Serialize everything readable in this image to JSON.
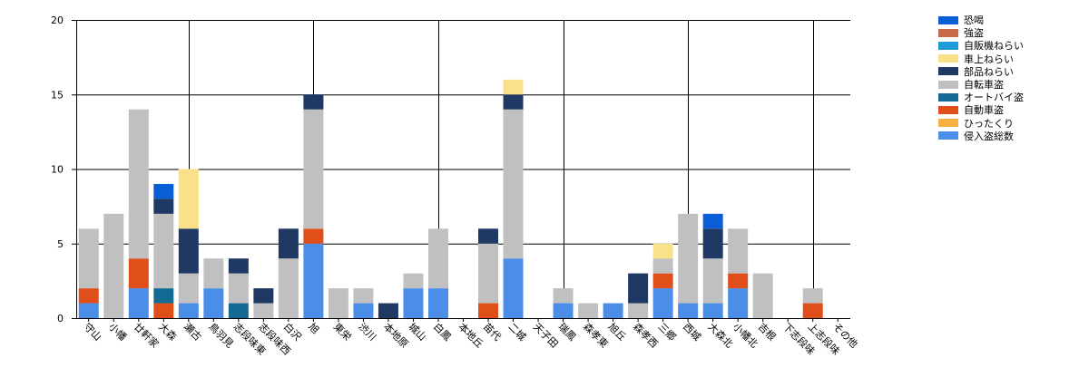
{
  "chart_data": {
    "type": "bar",
    "stacked": true,
    "title": "",
    "xlabel": "",
    "ylabel": "",
    "ylim": [
      0,
      20
    ],
    "yticks": [
      "0",
      "5",
      "10",
      "15",
      "20"
    ],
    "grid": "major gridlines at y = 5, 10, 15, 20 and vertical lines every 5 categories",
    "legend_position": "top-right",
    "categories": [
      "守山",
      "小幡",
      "廿軒家",
      "大森",
      "瀬古",
      "鳥羽見",
      "志段味東",
      "志段味西",
      "白沢",
      "旭",
      "東栄",
      "渋川",
      "本地原",
      "城山",
      "白鳳",
      "本地丘",
      "苗代",
      "二城",
      "天子田",
      "瑞鳳",
      "森孝東",
      "旭丘",
      "森孝西",
      "三郷",
      "西城",
      "大森北",
      "小幡北",
      "吉根",
      "下志段味",
      "上志段味",
      "その他"
    ],
    "series": [
      {
        "name": "侵入盗総数",
        "color": "#4a8ee8",
        "values": [
          1,
          0,
          2,
          0,
          1,
          2,
          0,
          0,
          0,
          5,
          0,
          1,
          0,
          2,
          2,
          0,
          0,
          4,
          0,
          1,
          0,
          1,
          0,
          2,
          1,
          1,
          2,
          0,
          0,
          0,
          0
        ]
      },
      {
        "name": "ひったくり",
        "color": "#f5b041",
        "values": [
          0,
          0,
          0,
          0,
          0,
          0,
          0,
          0,
          0,
          0,
          0,
          0,
          0,
          0,
          0,
          0,
          0,
          0,
          0,
          0,
          0,
          0,
          0,
          0,
          0,
          0,
          0,
          0,
          0,
          0,
          0
        ]
      },
      {
        "name": "自動車盗",
        "color": "#e04e1a",
        "values": [
          1,
          0,
          2,
          1,
          0,
          0,
          0,
          0,
          0,
          1,
          0,
          0,
          0,
          0,
          0,
          0,
          1,
          0,
          0,
          0,
          0,
          0,
          0,
          1,
          0,
          0,
          1,
          0,
          0,
          1,
          0
        ]
      },
      {
        "name": "オートバイ盗",
        "color": "#136b94",
        "values": [
          0,
          0,
          0,
          1,
          0,
          0,
          1,
          0,
          0,
          0,
          0,
          0,
          0,
          0,
          0,
          0,
          0,
          0,
          0,
          0,
          0,
          0,
          0,
          0,
          0,
          0,
          0,
          0,
          0,
          0,
          0
        ]
      },
      {
        "name": "自転車盗",
        "color": "#c0c0c0",
        "values": [
          4,
          7,
          10,
          5,
          2,
          2,
          2,
          1,
          4,
          8,
          2,
          1,
          0,
          1,
          4,
          0,
          4,
          10,
          0,
          1,
          1,
          0,
          1,
          1,
          6,
          3,
          3,
          3,
          0,
          1,
          0
        ]
      },
      {
        "name": "部品ねらい",
        "color": "#1f3864",
        "values": [
          0,
          0,
          0,
          1,
          3,
          0,
          1,
          1,
          2,
          1,
          0,
          0,
          1,
          0,
          0,
          0,
          1,
          1,
          0,
          0,
          0,
          0,
          2,
          0,
          0,
          2,
          0,
          0,
          0,
          0,
          0
        ]
      },
      {
        "name": "車上ねらい",
        "color": "#fbe08a",
        "values": [
          0,
          0,
          0,
          0,
          4,
          0,
          0,
          0,
          0,
          0,
          0,
          0,
          0,
          0,
          0,
          0,
          0,
          1,
          0,
          0,
          0,
          0,
          0,
          1,
          0,
          0,
          0,
          0,
          0,
          0,
          0
        ]
      },
      {
        "name": "自販機ねらい",
        "color": "#1e9ad6",
        "values": [
          0,
          0,
          0,
          0,
          0,
          0,
          0,
          0,
          0,
          0,
          0,
          0,
          0,
          0,
          0,
          0,
          0,
          0,
          0,
          0,
          0,
          0,
          0,
          0,
          0,
          0,
          0,
          0,
          0,
          0,
          0
        ]
      },
      {
        "name": "強盗",
        "color": "#c8694a",
        "values": [
          0,
          0,
          0,
          0,
          0,
          0,
          0,
          0,
          0,
          0,
          0,
          0,
          0,
          0,
          0,
          0,
          0,
          0,
          0,
          0,
          0,
          0,
          0,
          0,
          0,
          0,
          0,
          0,
          0,
          0,
          0
        ]
      },
      {
        "name": "恐喝",
        "color": "#0b5fd6",
        "values": [
          0,
          0,
          0,
          1,
          0,
          0,
          0,
          0,
          0,
          0,
          0,
          0,
          0,
          0,
          0,
          0,
          0,
          0,
          0,
          0,
          0,
          0,
          0,
          0,
          0,
          1,
          0,
          0,
          0,
          0,
          0
        ]
      }
    ]
  }
}
